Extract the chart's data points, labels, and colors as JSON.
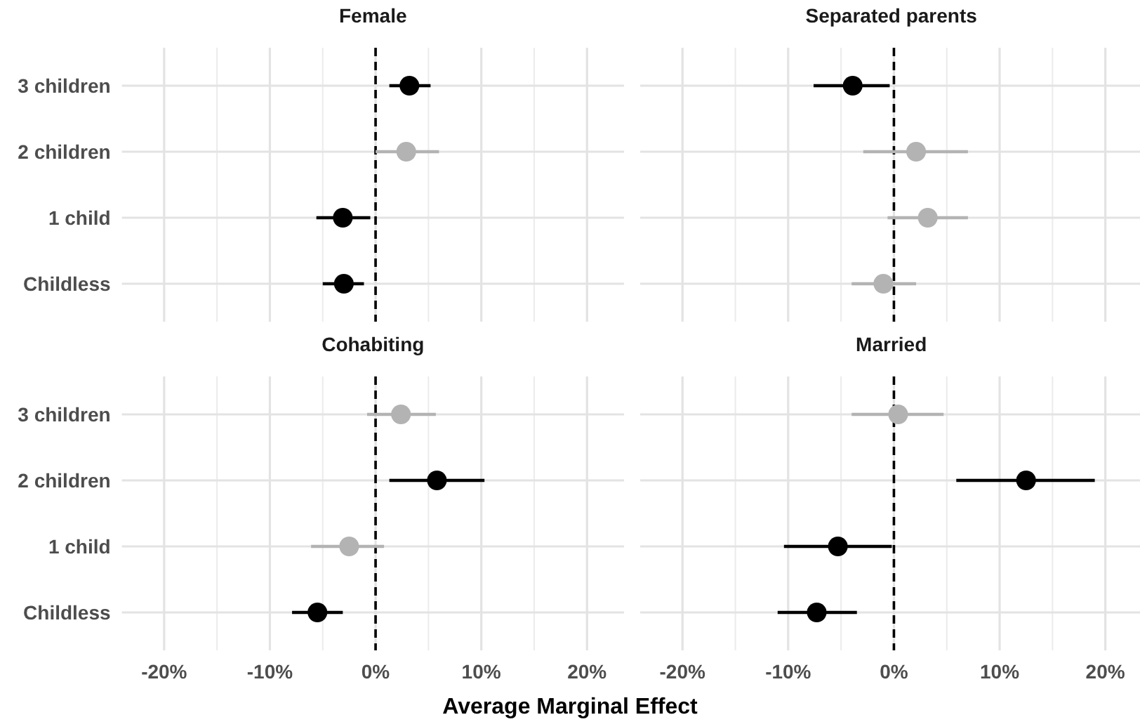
{
  "chart_data": [
    {
      "type": "scatter",
      "orientation": "horizontal",
      "title": "Female",
      "categories": [
        "3 children",
        "2 children",
        "1 child",
        "Childless"
      ],
      "xlim": [
        -24,
        23.5
      ],
      "xticks": [
        {
          "value": -20,
          "label": null
        },
        {
          "value": -10,
          "label": null
        },
        {
          "value": 0,
          "label": null
        },
        {
          "value": 10,
          "label": null
        },
        {
          "value": 20,
          "label": null
        }
      ],
      "grid": true,
      "marker": "circle",
      "tick_labels": "y",
      "ref_lines": [
        {
          "axis": "x",
          "value": 0,
          "color": "#000000",
          "line_style": "dashed"
        }
      ],
      "series": [
        {
          "color": "#000000",
          "values": [
            3.2,
            null,
            -3.1,
            -3.0
          ],
          "errors": [
            [
              1.3,
              5.2
            ],
            null,
            [
              -5.6,
              -0.5
            ],
            [
              -5.0,
              -1.1
            ]
          ]
        },
        {
          "color": "#b3b3b3",
          "values": [
            null,
            2.9,
            null,
            null
          ],
          "errors": [
            null,
            [
              0.0,
              6.0
            ],
            null,
            null
          ]
        }
      ]
    },
    {
      "type": "scatter",
      "orientation": "horizontal",
      "title": "Separated parents",
      "categories": [
        null,
        null,
        null,
        null
      ],
      "xlim": [
        -24,
        23.5
      ],
      "xticks": [
        {
          "value": -20,
          "label": null
        },
        {
          "value": -10,
          "label": null
        },
        {
          "value": 0,
          "label": null
        },
        {
          "value": 10,
          "label": null
        },
        {
          "value": 20,
          "label": null
        }
      ],
      "grid": true,
      "marker": "circle",
      "tick_labels": false,
      "ref_lines": [
        {
          "axis": "x",
          "value": 0,
          "color": "#000000",
          "line_style": "dashed"
        }
      ],
      "series": [
        {
          "color": "#000000",
          "values": [
            -3.9,
            null,
            null,
            null
          ],
          "errors": [
            [
              -7.6,
              -0.4
            ],
            null,
            null,
            null
          ]
        },
        {
          "color": "#b3b3b3",
          "values": [
            null,
            2.1,
            3.2,
            -1.0
          ],
          "errors": [
            null,
            [
              -2.9,
              7.0
            ],
            [
              -0.6,
              7.0
            ],
            [
              -4.0,
              2.1
            ]
          ]
        }
      ]
    },
    {
      "type": "scatter",
      "orientation": "horizontal",
      "title": "Cohabiting",
      "xlabel": "Average Marginal Effect",
      "categories": [
        "3 children",
        "2 children",
        "1 child",
        "Childless"
      ],
      "xlim": [
        -24,
        23.5
      ],
      "xticks": [
        {
          "value": -20,
          "label": "-20%"
        },
        {
          "value": -10,
          "label": "-10%"
        },
        {
          "value": 0,
          "label": "0%"
        },
        {
          "value": 10,
          "label": "10%"
        },
        {
          "value": 20,
          "label": "20%"
        }
      ],
      "grid": true,
      "marker": "circle",
      "ref_lines": [
        {
          "axis": "x",
          "value": 0,
          "color": "#000000",
          "line_style": "dashed"
        }
      ],
      "series": [
        {
          "color": "#000000",
          "values": [
            null,
            5.8,
            null,
            -5.5
          ],
          "errors": [
            null,
            [
              1.3,
              10.3
            ],
            null,
            [
              -7.9,
              -3.1
            ]
          ]
        },
        {
          "color": "#b3b3b3",
          "values": [
            2.4,
            null,
            -2.5,
            null
          ],
          "errors": [
            [
              -0.8,
              5.7
            ],
            null,
            [
              -6.1,
              0.8
            ],
            null
          ]
        }
      ]
    },
    {
      "type": "scatter",
      "orientation": "horizontal",
      "title": "Married",
      "categories": [
        null,
        null,
        null,
        null
      ],
      "xlim": [
        -24,
        23.5
      ],
      "xticks": [
        {
          "value": -20,
          "label": "-20%"
        },
        {
          "value": -10,
          "label": "-10%"
        },
        {
          "value": 0,
          "label": "0%"
        },
        {
          "value": 10,
          "label": "10%"
        },
        {
          "value": 20,
          "label": "20%"
        }
      ],
      "grid": true,
      "marker": "circle",
      "tick_labels": "x",
      "ref_lines": [
        {
          "axis": "x",
          "value": 0,
          "color": "#000000",
          "line_style": "dashed"
        }
      ],
      "series": [
        {
          "color": "#000000",
          "values": [
            null,
            12.5,
            -5.3,
            -7.3
          ],
          "errors": [
            null,
            [
              5.9,
              19.0
            ],
            [
              -10.4,
              -0.2
            ],
            [
              -11.0,
              -3.5
            ]
          ]
        },
        {
          "color": "#b3b3b3",
          "values": [
            0.4,
            null,
            null,
            null
          ],
          "errors": [
            [
              -4.0,
              4.7
            ],
            null,
            null,
            null
          ]
        }
      ]
    }
  ]
}
